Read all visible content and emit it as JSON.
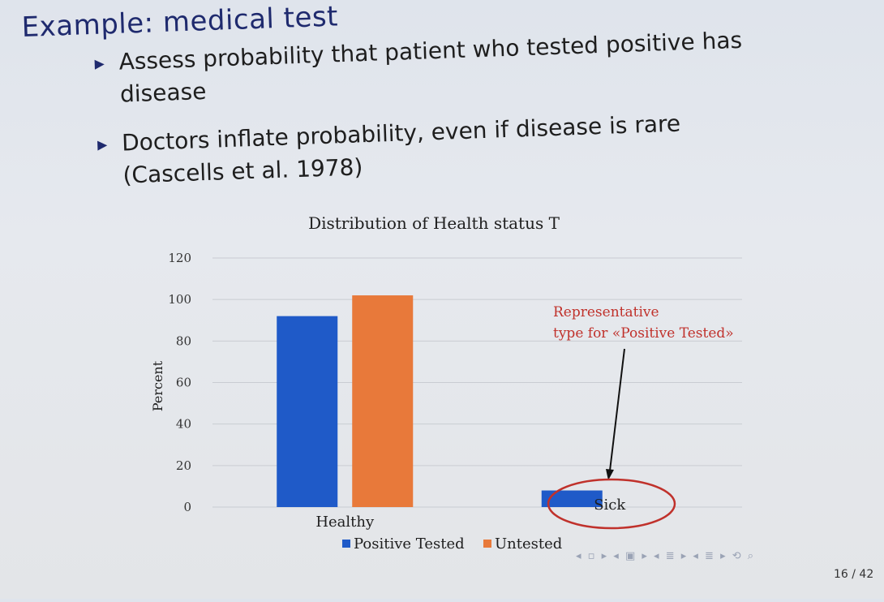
{
  "slide": {
    "title": "Example: medical test",
    "bullets": [
      {
        "lines": [
          "Assess probability that patient who tested positive has disease"
        ]
      },
      {
        "lines": [
          "Doctors inflate probability, even if disease is rare",
          "(Cascells et al. 1978)"
        ]
      }
    ],
    "page_number": "16 / 42",
    "nav_icons": [
      "prev-frame-icon",
      "next-frame-icon",
      "prev-section-icon",
      "next-section-icon",
      "search-icon"
    ],
    "colors": {
      "title": "#1f2a6e",
      "annotation": "#c0312b"
    }
  },
  "chart_data": {
    "type": "bar",
    "title": "Distribution of Health status T",
    "ylabel": "Percent",
    "xlabel": "",
    "categories": [
      "Healthy",
      "Sick"
    ],
    "ylim": [
      0,
      120
    ],
    "yticks": [
      0,
      20,
      40,
      60,
      80,
      100,
      120
    ],
    "grid": true,
    "legend_position": "bottom",
    "series": [
      {
        "name": "Positive Tested",
        "values": [
          92,
          8
        ],
        "color": "#1f5ac8"
      },
      {
        "name": "Untested",
        "values": [
          102,
          0
        ],
        "color": "#e8793a"
      }
    ],
    "annotation": {
      "text_lines": [
        "Representative",
        "type for «Positive Tested»"
      ],
      "color": "#c0312b",
      "points_to": "Sick"
    }
  }
}
